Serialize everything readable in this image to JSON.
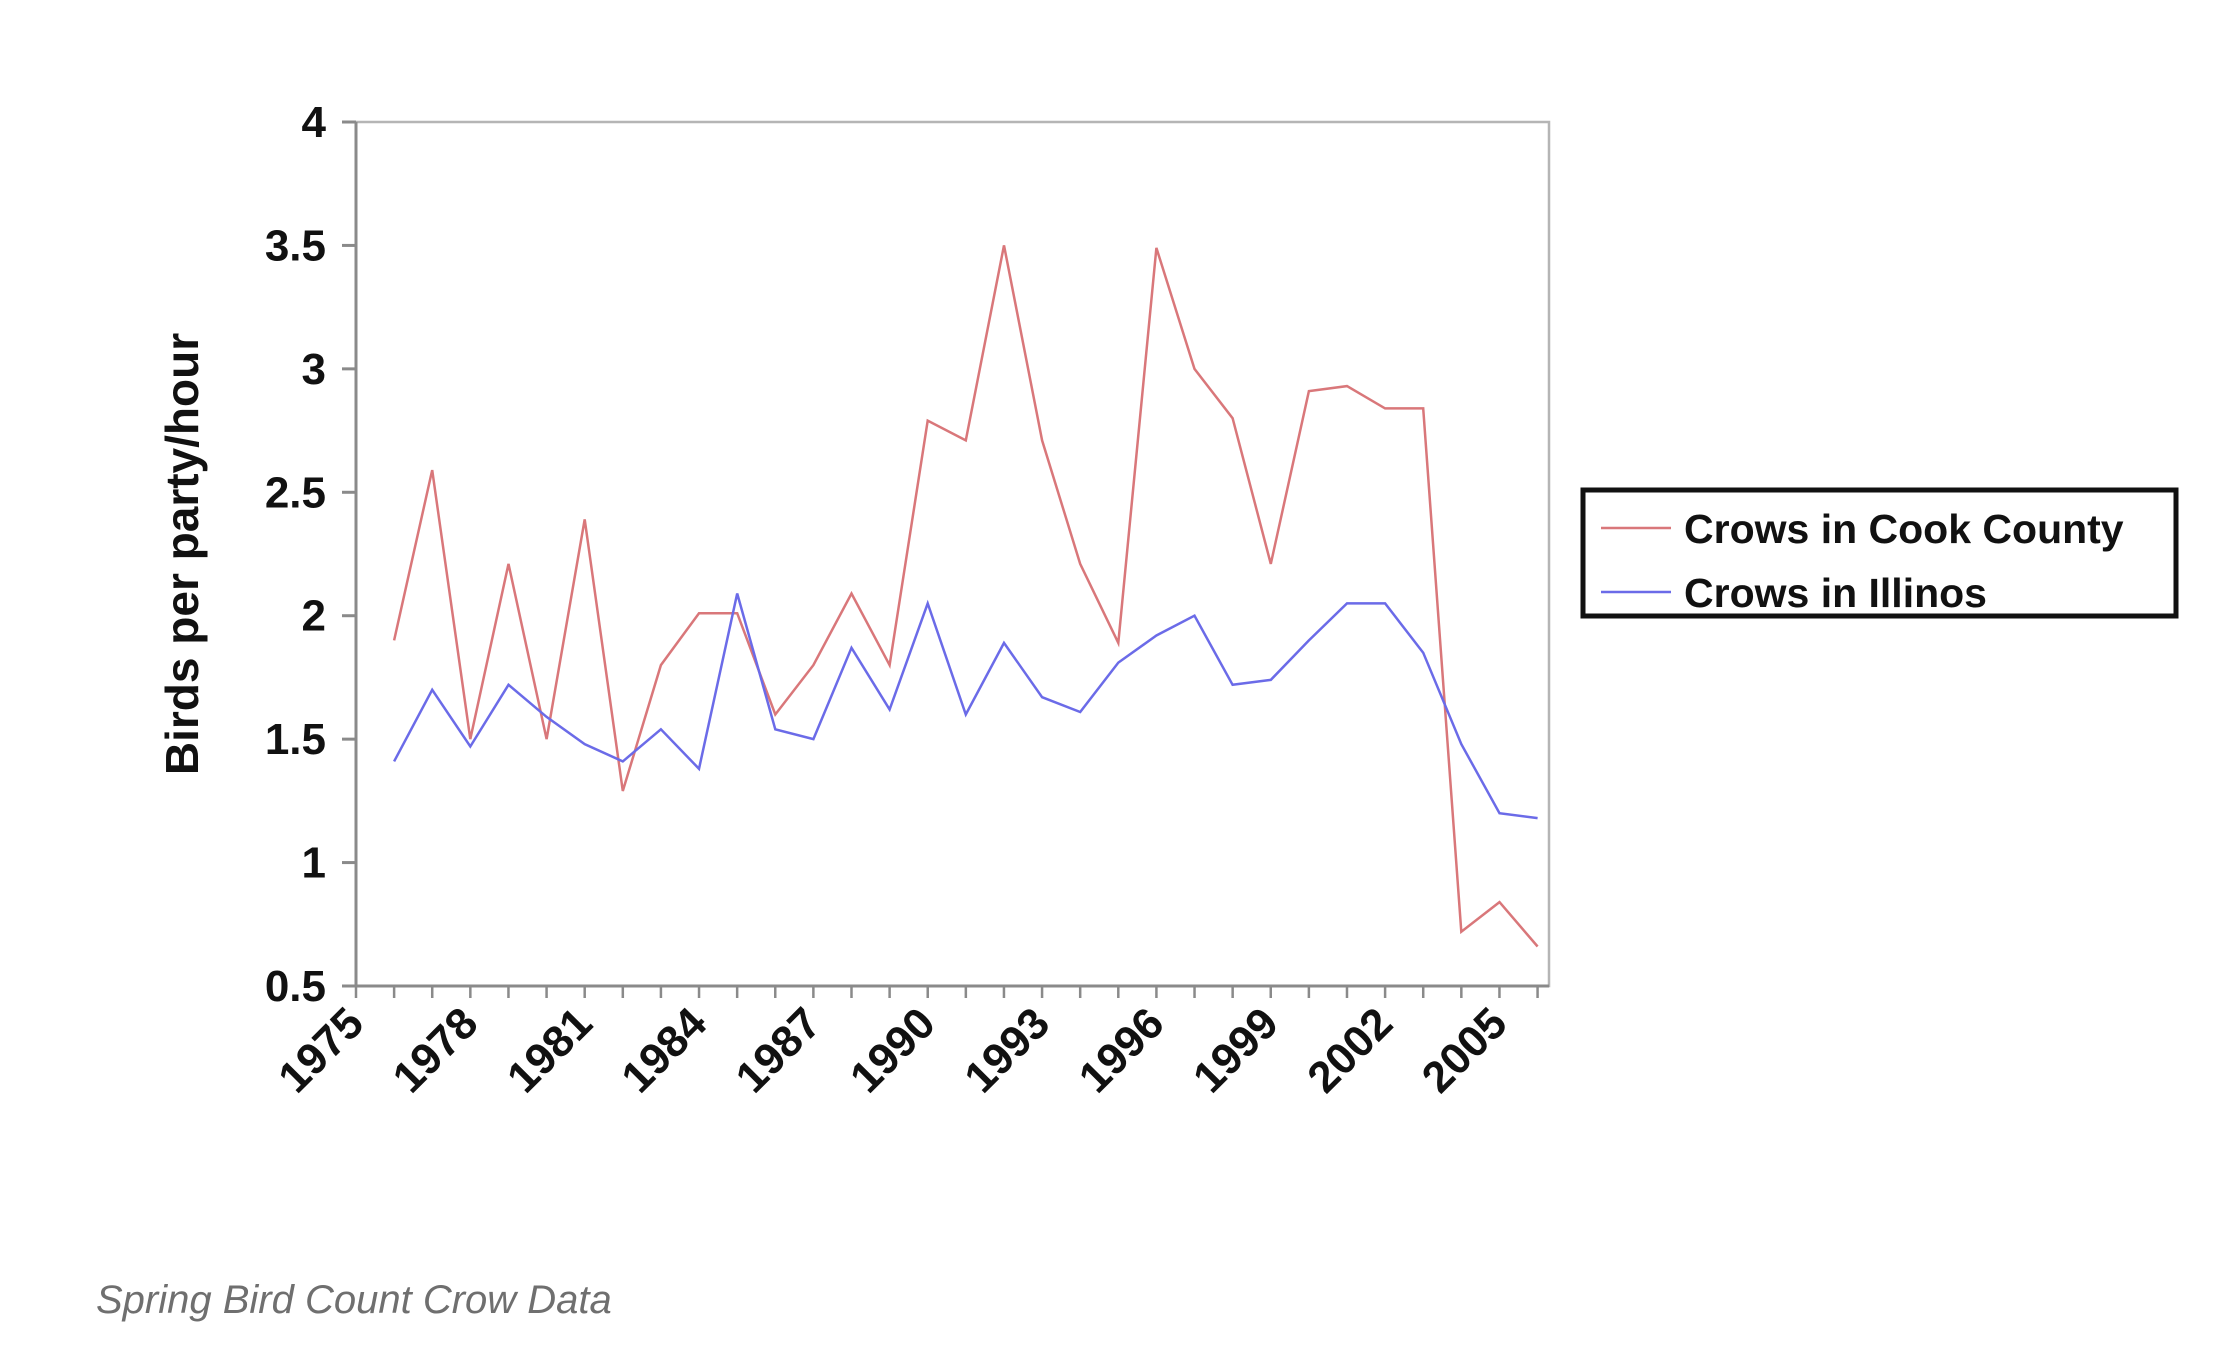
{
  "chart_data": {
    "type": "line",
    "title": "",
    "xlabel": "",
    "ylabel": "Birds per party/hour",
    "x": [
      1976,
      1977,
      1978,
      1979,
      1980,
      1981,
      1982,
      1983,
      1984,
      1985,
      1986,
      1987,
      1988,
      1989,
      1990,
      1991,
      1992,
      1993,
      1994,
      1995,
      1996,
      1997,
      1998,
      1999,
      2000,
      2001,
      2002,
      2003,
      2004,
      2005,
      2006,
      2007
    ],
    "xlim": [
      1975,
      2006.3
    ],
    "xticks": [
      "1975",
      "1978",
      "1981",
      "1984",
      "1987",
      "1990",
      "1993",
      "1996",
      "1999",
      "2002",
      "2005"
    ],
    "xtick_values": [
      1975,
      1978,
      1981,
      1984,
      1987,
      1990,
      1993,
      1996,
      1999,
      2002,
      2005
    ],
    "ylim": [
      0.5,
      4
    ],
    "yticks": [
      "0.5",
      "1",
      "1.5",
      "2",
      "2.5",
      "3",
      "3.5",
      "4"
    ],
    "ytick_values": [
      0.5,
      1,
      1.5,
      2,
      2.5,
      3,
      3.5,
      4
    ],
    "grid": false,
    "legend_position": "right",
    "series": [
      {
        "name": "Crows in Cook County",
        "color": "#d9777a",
        "values": [
          1.9,
          2.59,
          1.5,
          2.21,
          1.5,
          2.39,
          1.29,
          1.8,
          2.01,
          2.01,
          1.6,
          1.8,
          2.09,
          1.8,
          2.79,
          2.71,
          3.5,
          2.71,
          2.21,
          1.89,
          3.49,
          3.0,
          2.8,
          2.21,
          2.91,
          2.93,
          2.84,
          2.84,
          0.72,
          0.84,
          0.66,
          null
        ]
      },
      {
        "name": "Crows in Illinos",
        "color": "#6b6be8",
        "values": [
          1.41,
          1.7,
          1.47,
          1.72,
          1.59,
          1.48,
          1.41,
          1.54,
          1.38,
          2.09,
          1.54,
          1.5,
          1.87,
          1.62,
          2.05,
          1.6,
          1.89,
          1.67,
          1.61,
          1.81,
          1.92,
          2.0,
          1.72,
          1.74,
          1.9,
          2.05,
          2.05,
          1.85,
          1.48,
          1.2,
          1.18,
          null
        ]
      }
    ]
  },
  "caption": "Spring Bird Count Crow Data",
  "colors": {
    "axis": "#8a8a8a",
    "frame": "#b5b5b5",
    "legend_border": "#111111"
  }
}
